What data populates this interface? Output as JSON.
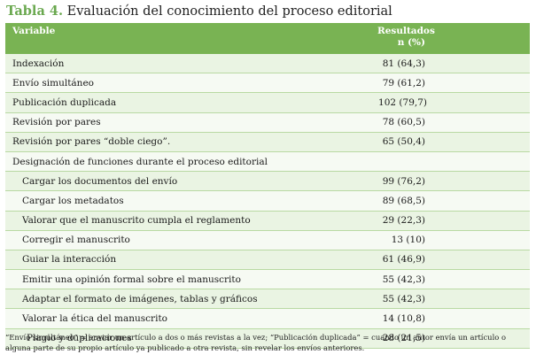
{
  "title": {
    "label": "Tabla 4.",
    "text": " Evaluación del conocimiento del proceso editorial"
  },
  "table": {
    "headers": {
      "variable": "Variable",
      "results_line1": "Resultados",
      "results_line2": "n (%)"
    },
    "rows": [
      {
        "label": "Indexación",
        "value": "81 (64,3)"
      },
      {
        "label": "Envío simultáneo",
        "value": "79 (61,2)"
      },
      {
        "label": "Publicación duplicada",
        "value": "102 (79,7)"
      },
      {
        "label": "Revisión por pares",
        "value": "78 (60,5)"
      },
      {
        "label": "Revisión por pares “doble ciego”.",
        "value": "65 (50,4)"
      },
      {
        "label": "Designación de funciones durante el proceso editorial",
        "value": ""
      },
      {
        "label": "Cargar los documentos del envío",
        "value": "99 (76,2)"
      },
      {
        "label": "Cargar los metadatos",
        "value": "89 (68,5)"
      },
      {
        "label": "Valorar que el manuscrito cumpla el reglamento",
        "value": "29 (22,3)"
      },
      {
        "label": "Corregir el manuscrito",
        "value": "13 (10)"
      },
      {
        "label": "Guiar la interacción",
        "value": "61 (46,9)"
      },
      {
        "label": "Emitir una opinión formal sobre el manuscrito",
        "value": "55 (42,3)"
      },
      {
        "label": "Adaptar el formato de imágenes, tablas y gráficos",
        "value": "55 (42,3)"
      },
      {
        "label": "Valorar la ética del manuscrito",
        "value": "14 (10,8)"
      },
      {
        "label": "Plagio y duplicaciones",
        "value": "28 (21,5)"
      }
    ]
  },
  "footnote": "“Envío simultáneo” = enviar un artículo a dos o más revistas a la vez; “Publicación duplicada” = cuando un autor envía un artículo o alguna parte de su propio artículo ya publicado a otra revista, sin revelar los envíos anteriores.",
  "colors": {
    "accent": "#79b353",
    "title_label": "#6aa84f",
    "row_odd": "#eaf4e3",
    "row_even": "#f6faf3"
  }
}
